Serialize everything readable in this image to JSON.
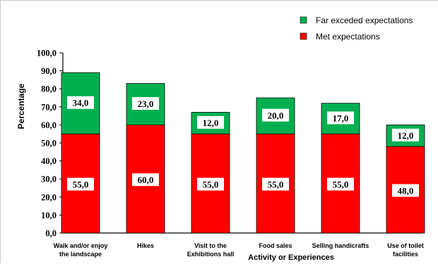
{
  "chart_data": {
    "type": "bar",
    "stacked": true,
    "categories": [
      [
        "Walk and/or enjoy",
        "the landscape"
      ],
      [
        "Hikes"
      ],
      [
        "Visit to the",
        "Exhibitions hall"
      ],
      [
        "Food sales"
      ],
      [
        "Selling handicrafts"
      ],
      [
        "Use of toilet",
        "facilities"
      ]
    ],
    "series": [
      {
        "name": "Met expectations",
        "values": [
          55.0,
          60.0,
          55.0,
          55.0,
          55.0,
          48.0
        ],
        "labels": [
          "55,0",
          "60,0",
          "55,0",
          "55,0",
          "55,0",
          "48,0"
        ],
        "color": "#ff0000"
      },
      {
        "name": "Far exceded expectations",
        "values": [
          34.0,
          23.0,
          12.0,
          20.0,
          17.0,
          12.0
        ],
        "labels": [
          "34,0",
          "23,0",
          "12,0",
          "20,0",
          "17,0",
          "12,0"
        ],
        "color": "#00b050"
      }
    ],
    "ylim": [
      0,
      100
    ],
    "yticks": [
      "0,0",
      "10,0",
      "20,0",
      "30,0",
      "40,0",
      "50,0",
      "60,0",
      "70,0",
      "80,0",
      "90,0",
      "100,0"
    ],
    "ylabel": "Percentage",
    "xlabel": "Activity or Experiences",
    "legend_position": "top-right",
    "legend_order": [
      "Far exceded expectations",
      "Met expectations"
    ],
    "grid": false
  }
}
